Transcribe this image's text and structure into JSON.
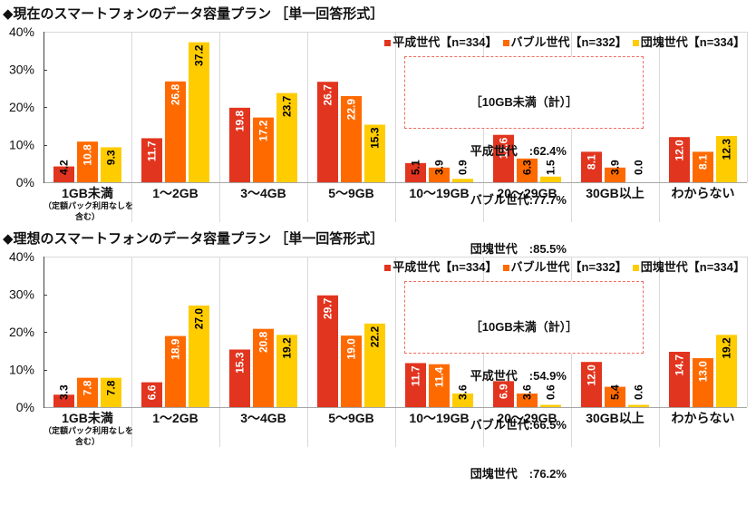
{
  "chart_data": [
    {
      "type": "bar",
      "title": "◆現在のスマートフォンのデータ容量プラン ［単一回答形式］",
      "xlabel": "",
      "ylabel": "",
      "ylim": [
        0,
        40
      ],
      "yticks": [
        0,
        10,
        20,
        30,
        40
      ],
      "ytick_labels": [
        "0%",
        "10%",
        "20%",
        "30%",
        "40%"
      ],
      "grid": false,
      "legend": "top-right",
      "categories": [
        "1GB未満",
        "1～2GB",
        "3～4GB",
        "5～9GB",
        "10～19GB",
        "20～29GB",
        "30GB以上",
        "わからない"
      ],
      "category_sublabels": [
        [
          "（定額パック利用なしを",
          "含む）"
        ],
        [],
        [],
        [],
        [],
        [],
        [],
        []
      ],
      "series": [
        {
          "name": "平成世代【n=334】",
          "color": "#E2351F",
          "label_color": "#FFFFFF",
          "values": [
            4.2,
            11.7,
            19.8,
            26.7,
            5.1,
            12.6,
            8.1,
            12.0
          ],
          "labels": [
            "4.2",
            "11.7",
            "19.8",
            "26.7",
            "5.1",
            "12.6",
            "8.1",
            "12.0"
          ]
        },
        {
          "name": "バブル世代【n=332】",
          "color": "#FF6A00",
          "label_color": "#FFFFFF",
          "values": [
            10.8,
            26.8,
            17.2,
            22.9,
            3.9,
            6.3,
            3.9,
            8.1
          ],
          "labels": [
            "10.8",
            "26.8",
            "17.2",
            "22.9",
            "3.9",
            "6.3",
            "3.9",
            "8.1"
          ]
        },
        {
          "name": "団塊世代【n=334】",
          "color": "#FFCC00",
          "label_color": "#000000",
          "values": [
            9.3,
            37.2,
            23.7,
            15.3,
            0.9,
            1.5,
            0.0,
            12.3
          ],
          "labels": [
            "9.3",
            "37.2",
            "23.7",
            "15.3",
            "0.9",
            "1.5",
            "0.0",
            "12.3"
          ]
        }
      ],
      "annotation": {
        "title": "［10GB未満（計）］",
        "rows": [
          "平成世代　:62.4%",
          "バブル世代:77.7%",
          "団塊世代　:85.5%"
        ]
      }
    },
    {
      "type": "bar",
      "title": "◆理想のスマートフォンのデータ容量プラン ［単一回答形式］",
      "xlabel": "",
      "ylabel": "",
      "ylim": [
        0,
        40
      ],
      "yticks": [
        0,
        10,
        20,
        30,
        40
      ],
      "ytick_labels": [
        "0%",
        "10%",
        "20%",
        "30%",
        "40%"
      ],
      "grid": false,
      "legend": "top-right",
      "categories": [
        "1GB未満",
        "1～2GB",
        "3～4GB",
        "5～9GB",
        "10～19GB",
        "20～29GB",
        "30GB以上",
        "わからない"
      ],
      "category_sublabels": [
        [
          "（定額パック利用なしを",
          "含む）"
        ],
        [],
        [],
        [],
        [],
        [],
        [],
        []
      ],
      "series": [
        {
          "name": "平成世代【n=334】",
          "color": "#E2351F",
          "label_color": "#FFFFFF",
          "values": [
            3.3,
            6.6,
            15.3,
            29.7,
            11.7,
            6.9,
            12.0,
            14.7
          ],
          "labels": [
            "3.3",
            "6.6",
            "15.3",
            "29.7",
            "11.7",
            "6.9",
            "12.0",
            "14.7"
          ]
        },
        {
          "name": "バブル世代【n=332】",
          "color": "#FF6A00",
          "label_color": "#FFFFFF",
          "values": [
            7.8,
            18.9,
            20.8,
            19.0,
            11.4,
            3.6,
            5.4,
            13.0
          ],
          "labels": [
            "7.8",
            "18.9",
            "20.8",
            "19.0",
            "11.4",
            "3.6",
            "5.4",
            "13.0"
          ]
        },
        {
          "name": "団塊世代【n=334】",
          "color": "#FFCC00",
          "label_color": "#000000",
          "values": [
            7.8,
            27.0,
            19.2,
            22.2,
            3.6,
            0.6,
            0.6,
            19.2
          ],
          "labels": [
            "7.8",
            "27.0",
            "19.2",
            "22.2",
            "3.6",
            "0.6",
            "0.6",
            "19.2"
          ]
        }
      ],
      "annotation": {
        "title": "［10GB未満（計）］",
        "rows": [
          "平成世代　:54.9%",
          "バブル世代:66.5%",
          "団塊世代　:76.2%"
        ]
      }
    }
  ]
}
